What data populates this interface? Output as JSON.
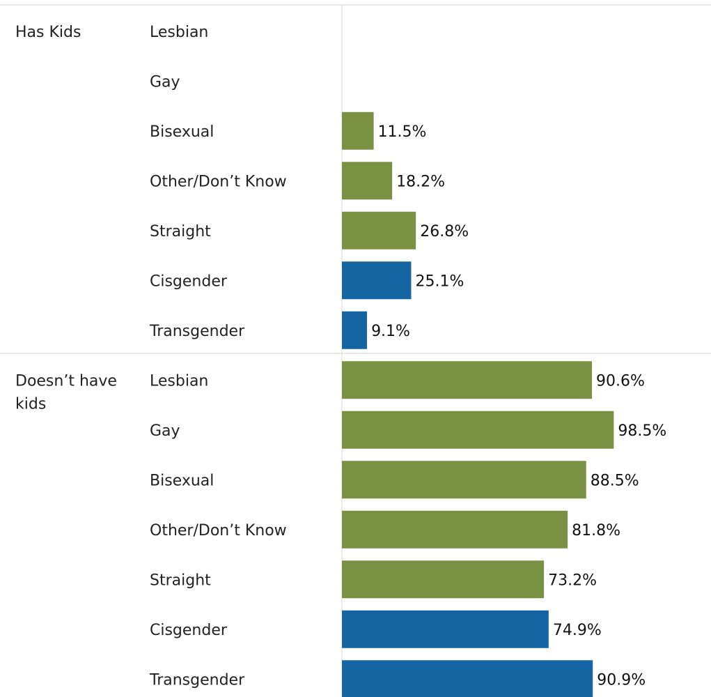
{
  "chart_data": {
    "type": "bar",
    "orientation": "horizontal",
    "xlim": [
      0,
      100
    ],
    "value_suffix": "%",
    "colors": {
      "orientation": "#7a9042",
      "gender": "#1565a3"
    },
    "groups": [
      {
        "label": "Has Kids",
        "rows": [
          {
            "category": "Lesbian",
            "value": null,
            "value_label": "",
            "kind": "orientation"
          },
          {
            "category": "Gay",
            "value": null,
            "value_label": "",
            "kind": "orientation"
          },
          {
            "category": "Bisexual",
            "value": 11.5,
            "value_label": "11.5%",
            "kind": "orientation"
          },
          {
            "category": "Other/Don’t Know",
            "value": 18.2,
            "value_label": "18.2%",
            "kind": "orientation"
          },
          {
            "category": "Straight",
            "value": 26.8,
            "value_label": "26.8%",
            "kind": "orientation"
          },
          {
            "category": "Cisgender",
            "value": 25.1,
            "value_label": "25.1%",
            "kind": "gender"
          },
          {
            "category": "Transgender",
            "value": 9.1,
            "value_label": "9.1%",
            "kind": "gender"
          }
        ]
      },
      {
        "label": "Doesn’t have kids",
        "rows": [
          {
            "category": "Lesbian",
            "value": 90.6,
            "value_label": "90.6%",
            "kind": "orientation"
          },
          {
            "category": "Gay",
            "value": 98.5,
            "value_label": "98.5%",
            "kind": "orientation"
          },
          {
            "category": "Bisexual",
            "value": 88.5,
            "value_label": "88.5%",
            "kind": "orientation"
          },
          {
            "category": "Other/Don’t Know",
            "value": 81.8,
            "value_label": "81.8%",
            "kind": "orientation"
          },
          {
            "category": "Straight",
            "value": 73.2,
            "value_label": "73.2%",
            "kind": "orientation"
          },
          {
            "category": "Cisgender",
            "value": 74.9,
            "value_label": "74.9%",
            "kind": "gender"
          },
          {
            "category": "Transgender",
            "value": 90.9,
            "value_label": "90.9%",
            "kind": "gender"
          }
        ]
      }
    ]
  }
}
